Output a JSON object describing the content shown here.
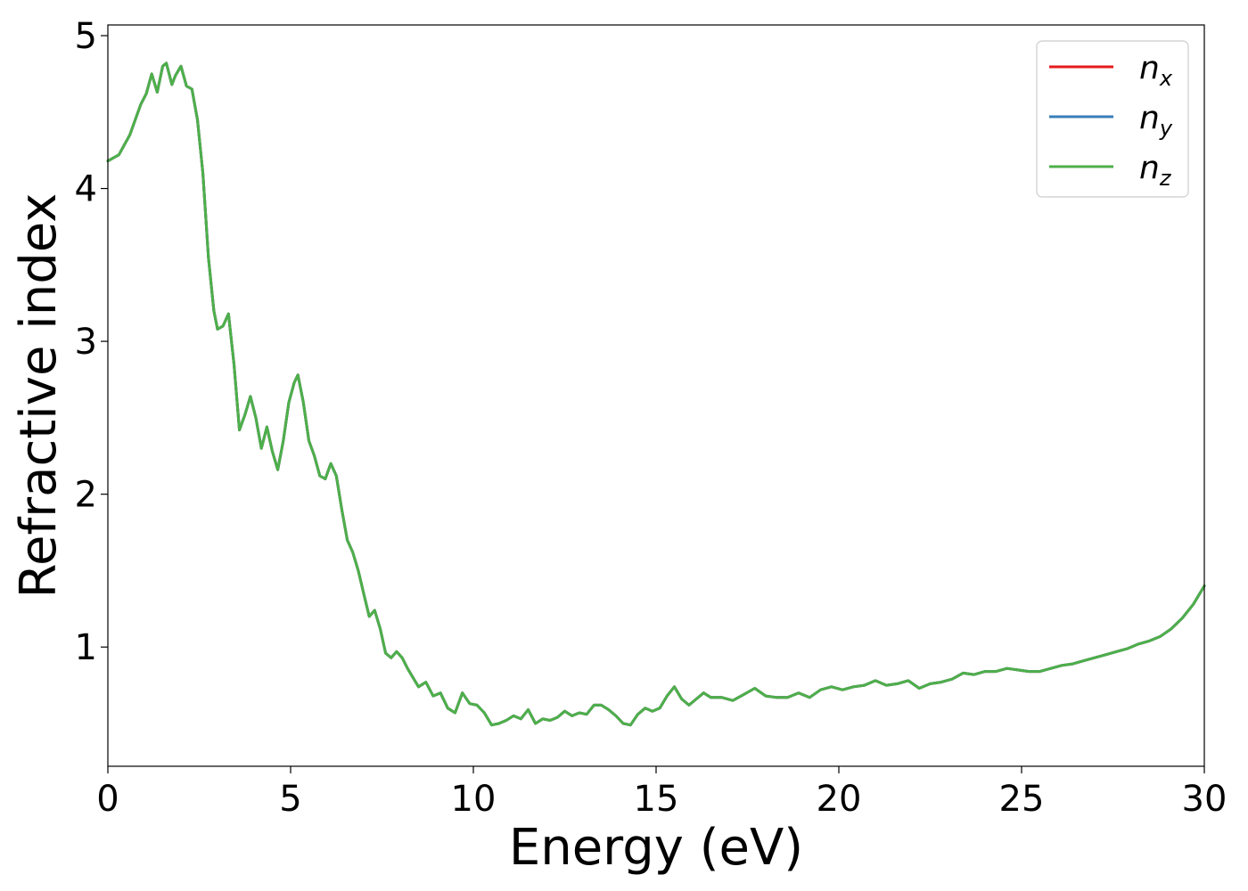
{
  "chart_data": {
    "type": "line",
    "title": "",
    "xlabel": "Energy (eV)",
    "ylabel": "Refractive index",
    "xlim": [
      0,
      30
    ],
    "ylim": [
      0.22,
      5.07
    ],
    "xticks": [
      "0",
      "5",
      "10",
      "15",
      "20",
      "25",
      "30"
    ],
    "yticks": [
      "1",
      "2",
      "3",
      "4",
      "5"
    ],
    "grid": false,
    "legend_position": "top-right",
    "series": [
      {
        "name": "n",
        "subscript": "x",
        "color": "#e41a1c"
      },
      {
        "name": "n",
        "subscript": "y",
        "color": "#377eb8"
      },
      {
        "name": "n",
        "subscript": "z",
        "color": "#4daf4a"
      }
    ],
    "x": [
      0,
      0.3,
      0.6,
      0.9,
      1.05,
      1.2,
      1.35,
      1.5,
      1.6,
      1.75,
      1.85,
      2.0,
      2.15,
      2.3,
      2.45,
      2.6,
      2.75,
      2.9,
      3.0,
      3.15,
      3.3,
      3.45,
      3.6,
      3.75,
      3.9,
      4.05,
      4.2,
      4.35,
      4.5,
      4.65,
      4.8,
      4.95,
      5.1,
      5.2,
      5.35,
      5.5,
      5.65,
      5.8,
      5.95,
      6.1,
      6.25,
      6.4,
      6.55,
      6.7,
      6.85,
      7.0,
      7.15,
      7.3,
      7.45,
      7.6,
      7.75,
      7.9,
      8.05,
      8.2,
      8.35,
      8.5,
      8.7,
      8.9,
      9.1,
      9.3,
      9.5,
      9.7,
      9.9,
      10.1,
      10.3,
      10.5,
      10.7,
      10.9,
      11.1,
      11.3,
      11.5,
      11.7,
      11.9,
      12.1,
      12.3,
      12.5,
      12.7,
      12.9,
      13.1,
      13.3,
      13.5,
      13.7,
      13.9,
      14.1,
      14.3,
      14.5,
      14.7,
      14.9,
      15.1,
      15.3,
      15.5,
      15.7,
      15.9,
      16.1,
      16.3,
      16.5,
      16.8,
      17.1,
      17.4,
      17.7,
      18.0,
      18.3,
      18.6,
      18.9,
      19.2,
      19.5,
      19.8,
      20.1,
      20.4,
      20.7,
      21.0,
      21.3,
      21.6,
      21.9,
      22.2,
      22.5,
      22.8,
      23.1,
      23.4,
      23.7,
      24.0,
      24.3,
      24.6,
      24.9,
      25.2,
      25.5,
      25.8,
      26.1,
      26.4,
      26.7,
      27.0,
      27.3,
      27.6,
      27.9,
      28.2,
      28.5,
      28.8,
      29.1,
      29.4,
      29.7,
      30.0
    ],
    "y": [
      4.18,
      4.22,
      4.35,
      4.55,
      4.62,
      4.75,
      4.63,
      4.8,
      4.82,
      4.68,
      4.74,
      4.8,
      4.67,
      4.65,
      4.45,
      4.1,
      3.55,
      3.2,
      3.08,
      3.1,
      3.18,
      2.85,
      2.42,
      2.52,
      2.64,
      2.5,
      2.3,
      2.44,
      2.28,
      2.16,
      2.35,
      2.6,
      2.73,
      2.78,
      2.6,
      2.35,
      2.25,
      2.12,
      2.1,
      2.2,
      2.12,
      1.9,
      1.7,
      1.62,
      1.5,
      1.35,
      1.2,
      1.24,
      1.12,
      0.96,
      0.93,
      0.97,
      0.93,
      0.86,
      0.8,
      0.74,
      0.77,
      0.68,
      0.7,
      0.6,
      0.57,
      0.7,
      0.63,
      0.62,
      0.57,
      0.49,
      0.5,
      0.52,
      0.55,
      0.53,
      0.59,
      0.5,
      0.53,
      0.52,
      0.54,
      0.58,
      0.55,
      0.57,
      0.56,
      0.62,
      0.62,
      0.59,
      0.55,
      0.5,
      0.49,
      0.56,
      0.6,
      0.58,
      0.6,
      0.68,
      0.74,
      0.66,
      0.62,
      0.66,
      0.7,
      0.67,
      0.67,
      0.65,
      0.69,
      0.73,
      0.68,
      0.67,
      0.67,
      0.7,
      0.67,
      0.72,
      0.74,
      0.72,
      0.74,
      0.75,
      0.78,
      0.75,
      0.76,
      0.78,
      0.73,
      0.76,
      0.77,
      0.79,
      0.83,
      0.82,
      0.84,
      0.84,
      0.86,
      0.85,
      0.84,
      0.84,
      0.86,
      0.88,
      0.89,
      0.91,
      0.93,
      0.95,
      0.97,
      0.99,
      1.02,
      1.04,
      1.07,
      1.12,
      1.19,
      1.28,
      1.4
    ]
  }
}
